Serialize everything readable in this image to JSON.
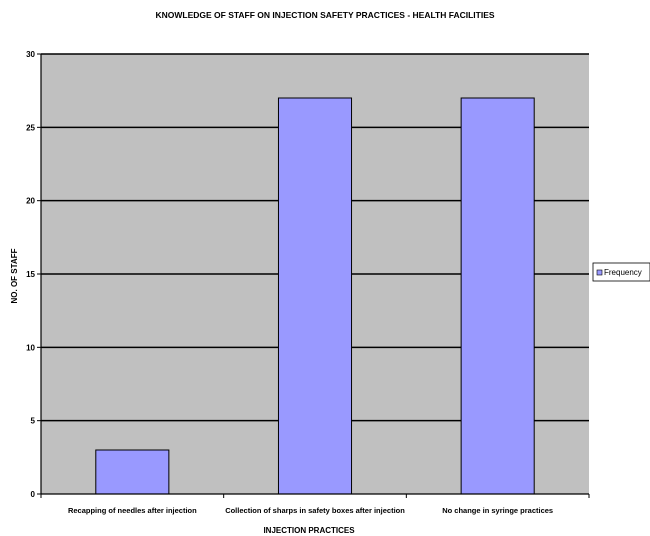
{
  "chart_data": {
    "type": "bar",
    "title": "KNOWLEDGE OF STAFF ON INJECTION SAFETY PRACTICES - HEALTH FACILITIES",
    "xlabel": "INJECTION PRACTICES",
    "ylabel": "NO. OF STAFF",
    "ylim": [
      0,
      30
    ],
    "yticks": [
      0,
      5,
      10,
      15,
      20,
      25,
      30
    ],
    "categories": [
      "Recapping of needles after injection",
      "Collection of sharps in safety boxes after injection",
      "No change in syringe practices"
    ],
    "series": [
      {
        "name": "Frequency",
        "values": [
          3,
          27,
          27
        ]
      }
    ],
    "grid": true,
    "legend": "right",
    "colors": {
      "bar": "#9999ff",
      "plot_background": "#c0c0c0",
      "bar_stroke": "#000000",
      "gridline": "#000000"
    }
  }
}
